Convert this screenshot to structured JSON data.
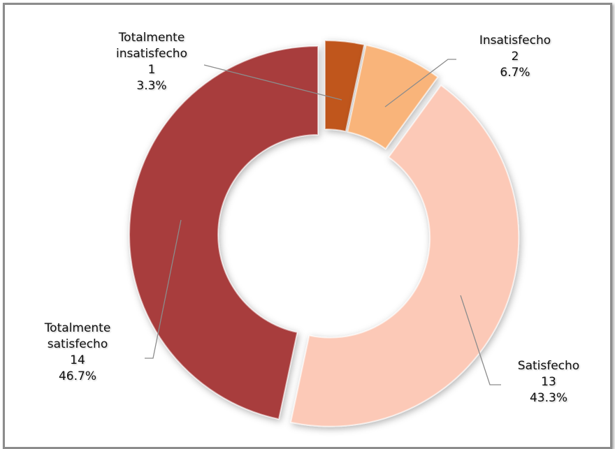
{
  "chart_data": {
    "type": "donut",
    "categories": [
      "Totalmente insatisfecho",
      "Insatisfecho",
      "Satisfecho",
      "Totalmente satisfecho"
    ],
    "values": [
      1,
      2,
      13,
      14
    ],
    "percent_labels": [
      "3.3%",
      "6.7%",
      "43.3%",
      "46.7%"
    ],
    "colors": [
      "#c0561f",
      "#f9b47a",
      "#fcc9b7",
      "#a83c3c"
    ]
  }
}
